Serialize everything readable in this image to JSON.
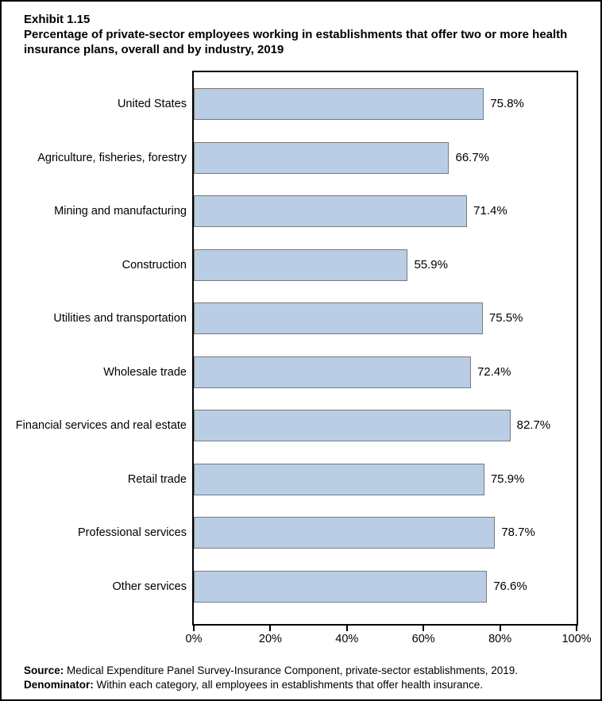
{
  "title": {
    "exhibit": "Exhibit 1.15",
    "text": "Percentage of private-sector employees working in establishments that offer two or more health insurance plans, overall and by industry, 2019"
  },
  "chart_data": {
    "type": "bar",
    "orientation": "horizontal",
    "categories": [
      "United States",
      "Agriculture, fisheries, forestry",
      "Mining and manufacturing",
      "Construction",
      "Utilities and transportation",
      "Wholesale trade",
      "Financial services and real estate",
      "Retail trade",
      "Professional services",
      "Other services"
    ],
    "values": [
      75.8,
      66.7,
      71.4,
      55.9,
      75.5,
      72.4,
      82.7,
      75.9,
      78.7,
      76.6
    ],
    "value_labels": [
      "75.8%",
      "66.7%",
      "71.4%",
      "55.9%",
      "75.5%",
      "72.4%",
      "82.7%",
      "75.9%",
      "78.7%",
      "76.6%"
    ],
    "xlim": [
      0,
      100
    ],
    "x_tick_values": [
      0,
      20,
      40,
      60,
      80,
      100
    ],
    "x_tick_labels": [
      "0%",
      "20%",
      "40%",
      "60%",
      "80%",
      "100%"
    ],
    "grid": "off",
    "legend": "none",
    "bar_fill_color": "#B9CDE5",
    "bar_border_color": "#7A7A7A"
  },
  "footer": {
    "source_label": "Source:",
    "source_text": " Medical Expenditure Panel Survey-Insurance Component, private-sector establishments, 2019.",
    "denominator_label": "Denominator:",
    "denominator_text": " Within each category, all employees in establishments that offer health insurance."
  }
}
